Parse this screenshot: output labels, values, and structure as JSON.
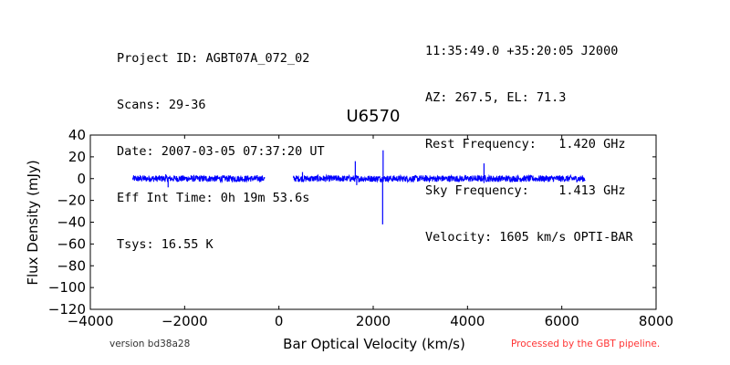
{
  "header": {
    "left": [
      "Project ID: AGBT07A_072_02",
      "Scans: 29-36",
      "Date: 2007-03-05 07:37:20 UT",
      "Eff Int Time: 0h 19m 53.6s",
      "Tsys: 16.55 K"
    ],
    "right": [
      "11:35:49.0 +35:20:05 J2000",
      "AZ: 267.5, EL: 71.3",
      "Rest Frequency:   1.420 GHz",
      "Sky Frequency:    1.413 GHz",
      "Velocity: 1605 km/s OPTI-BAR"
    ]
  },
  "footer": {
    "version": "version bd38a28",
    "pipeline": "Processed by the GBT pipeline."
  },
  "colors": {
    "series": "#0000ff",
    "pipeline_text": "#ff3333",
    "version_text": "#333333"
  },
  "chart_data": {
    "type": "line",
    "title": "U6570",
    "xlabel": "Bar Optical Velocity (km/s)",
    "ylabel": "Flux Density (mJy)",
    "xlim": [
      -4000,
      8000
    ],
    "ylim": [
      -120,
      40
    ],
    "xticks": [
      -4000,
      -2000,
      0,
      2000,
      4000,
      6000,
      8000
    ],
    "yticks": [
      40,
      20,
      0,
      -20,
      -40,
      -60,
      -80,
      -100,
      -120
    ],
    "grid": false,
    "series": [
      {
        "segments": [
          {
            "x_range": [
              -3100,
              -300
            ],
            "baseline": 0,
            "noise_amplitude": 3,
            "features": [
              {
                "x": -2400,
                "y": 4
              },
              {
                "x": -2350,
                "y": -8
              }
            ]
          },
          {
            "x_range": [
              300,
              6500
            ],
            "baseline": 0,
            "noise_amplitude": 3,
            "features": [
              {
                "x": 500,
                "y": 6
              },
              {
                "x": 1620,
                "y": 16
              },
              {
                "x": 1650,
                "y": -6
              },
              {
                "x": 2210,
                "y": 26
              },
              {
                "x": 2200,
                "y": -42
              },
              {
                "x": 4350,
                "y": 14
              },
              {
                "x": 4350,
                "y": -4
              }
            ]
          }
        ]
      }
    ]
  }
}
